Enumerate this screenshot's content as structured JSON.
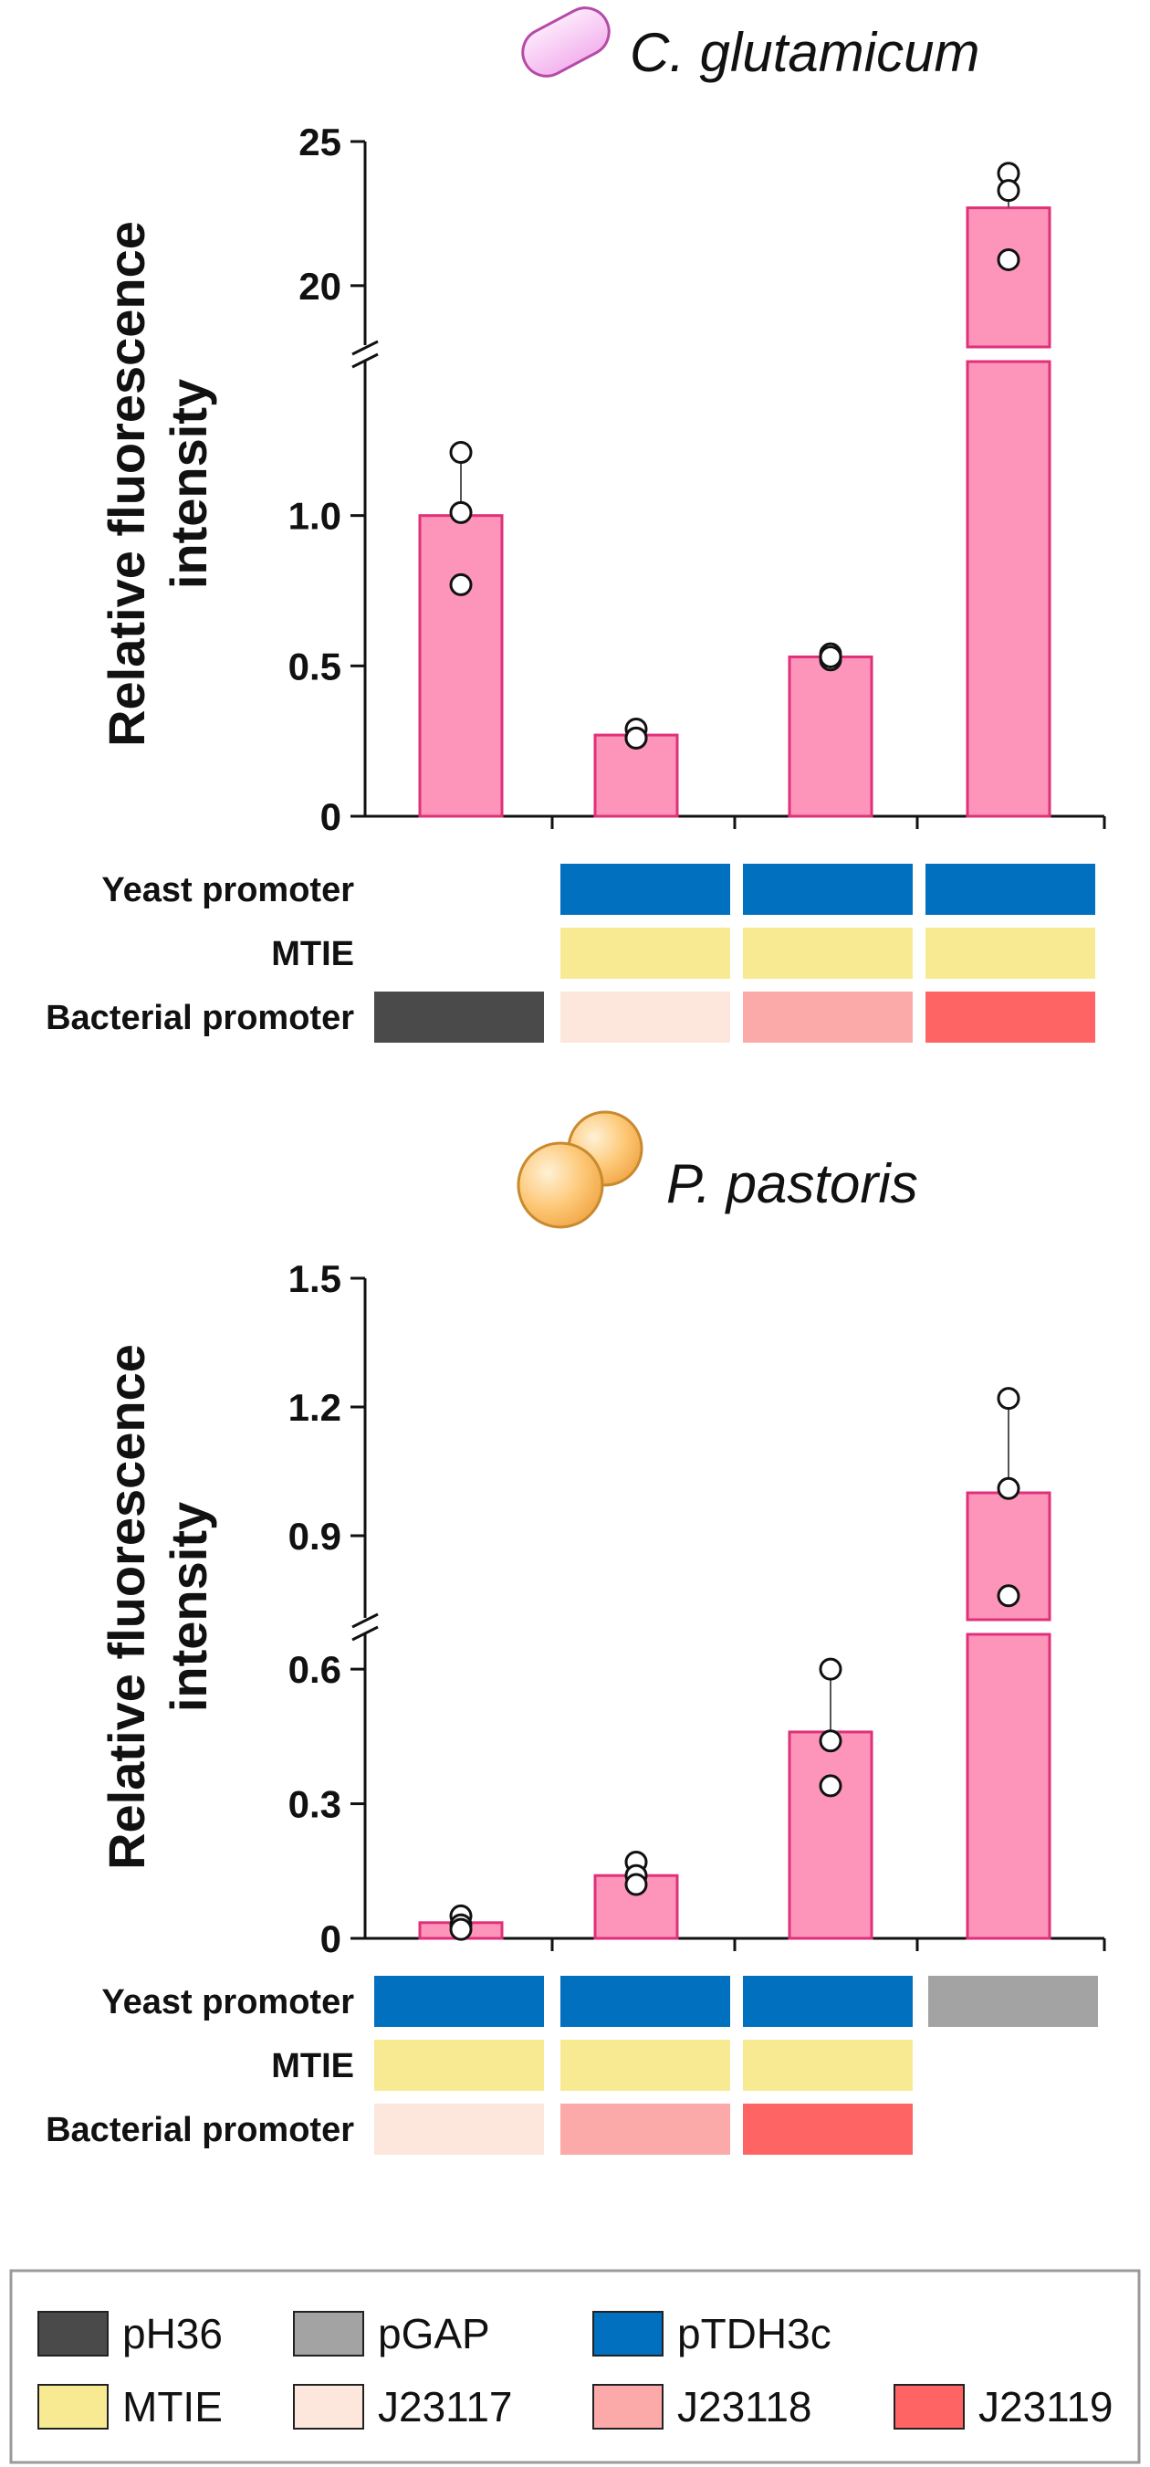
{
  "chart_data": [
    {
      "type": "bar",
      "title": "C. glutamicum",
      "ylabel": "Relative fluorescence intensity",
      "ylabel_lines": [
        "Relative fluorescence",
        "intensity"
      ],
      "axis_break": true,
      "ylim_lower": [
        0,
        1.5
      ],
      "ylim_upper": [
        18,
        25
      ],
      "yticks_lower": [
        {
          "value": 0,
          "label": "0"
        },
        {
          "value": 0.5,
          "label": "0.5"
        },
        {
          "value": 1.0,
          "label": "1.0"
        }
      ],
      "yticks_upper": [
        {
          "value": 20,
          "label": "20"
        },
        {
          "value": 25,
          "label": "25"
        }
      ],
      "bar_color": "#fc95b9",
      "bar_edge_color": "#e0307a",
      "values": [
        1.0,
        0.27,
        0.53,
        22.7
      ],
      "error_top": [
        1.21,
        0.29,
        0.54,
        23.9
      ],
      "points": [
        [
          1.21,
          1.01,
          0.77
        ],
        [
          0.29,
          0.26,
          0.26
        ],
        [
          0.54,
          0.52,
          0.53
        ],
        [
          23.9,
          23.3,
          20.9
        ]
      ],
      "rows": [
        {
          "label": "Yeast promoter",
          "cells": [
            null,
            "#0070bf",
            "#0070bf",
            "#0070bf"
          ]
        },
        {
          "label": "MTIE",
          "cells": [
            null,
            "#f8ea93",
            "#f8ea93",
            "#f8ea93"
          ]
        },
        {
          "label": "Bacterial promoter",
          "cells": [
            "#4a4a4a",
            "#fde6dc",
            "#fbaaa9",
            "#ff6464"
          ]
        }
      ]
    },
    {
      "type": "bar",
      "title": "P. pastoris",
      "ylabel": "Relative fluorescence intensity",
      "ylabel_lines": [
        "Relative fluorescence",
        "intensity"
      ],
      "axis_break": true,
      "ylim_lower": [
        0,
        0.7
      ],
      "ylim_upper": [
        0.7,
        1.5
      ],
      "yticks_lower": [
        {
          "value": 0,
          "label": "0"
        },
        {
          "value": 0.3,
          "label": "0.3"
        },
        {
          "value": 0.6,
          "label": "0.6"
        }
      ],
      "yticks_upper": [
        {
          "value": 0.9,
          "label": "0.9"
        },
        {
          "value": 1.2,
          "label": "1.2"
        },
        {
          "value": 1.5,
          "label": "1.5"
        }
      ],
      "bar_color": "#fc95b9",
      "bar_edge_color": "#e0307a",
      "values": [
        0.035,
        0.14,
        0.46,
        1.0
      ],
      "error_top": [
        0.05,
        0.17,
        0.6,
        1.22
      ],
      "points": [
        [
          0.05,
          0.03,
          0.02
        ],
        [
          0.17,
          0.14,
          0.12
        ],
        [
          0.6,
          0.44,
          0.34
        ],
        [
          1.22,
          1.01,
          0.76
        ]
      ],
      "rows": [
        {
          "label": "Yeast promoter",
          "cells": [
            "#0070bf",
            "#0070bf",
            "#0070bf",
            "#a3a3a3"
          ]
        },
        {
          "label": "MTIE",
          "cells": [
            "#f8ea93",
            "#f8ea93",
            "#f8ea93",
            null
          ]
        },
        {
          "label": "Bacterial promoter",
          "cells": [
            "#fde6dc",
            "#fbaaa9",
            "#ff6464",
            null
          ]
        }
      ]
    }
  ],
  "legend": {
    "placement": "bottom",
    "items": [
      {
        "label": "pH36",
        "color": "#4a4a4a"
      },
      {
        "label": "pGAP",
        "color": "#a3a3a3"
      },
      {
        "label": "pTDH3c",
        "color": "#0070bf"
      },
      {
        "label": "MTIE",
        "color": "#f8ea93"
      },
      {
        "label": "J23117",
        "color": "#fde6dc"
      },
      {
        "label": "J23118",
        "color": "#fbaaa9"
      },
      {
        "label": "J23119",
        "color": "#ff6464"
      }
    ]
  },
  "icons": [
    "rod-bacterium-icon",
    "budding-yeast-icon"
  ]
}
